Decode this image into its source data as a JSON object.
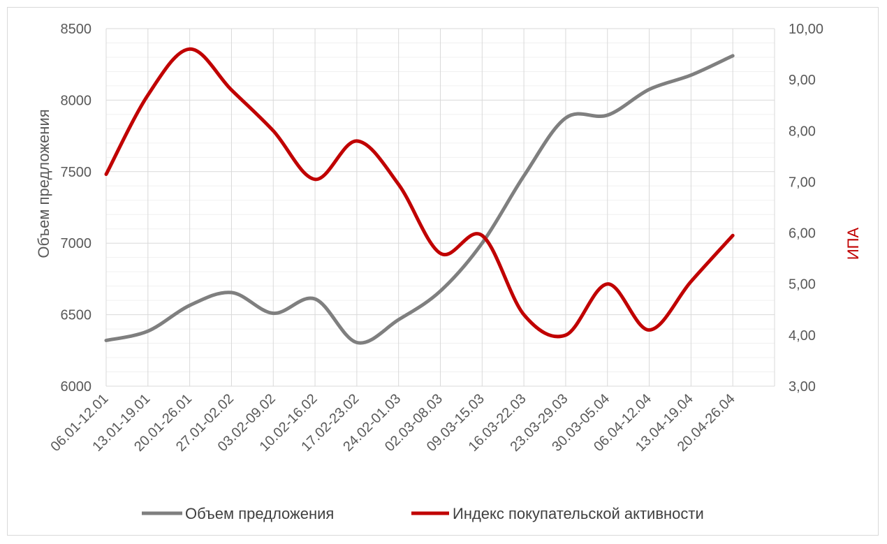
{
  "chart_data": {
    "type": "line",
    "categories": [
      "06.01-12.01",
      "13.01-19.01",
      "20.01-26.01",
      "27.01-02.02",
      "03.02-09.02",
      "10.02-16.02",
      "17.02-23.02",
      "24.02-01.03",
      "02.03-08.03",
      "09.03-15.03",
      "16.03-22.03",
      "23.03-29.03",
      "30.03-05.04",
      "06.04-12.04",
      "13.04-19.04",
      "20.04-26.04"
    ],
    "series": [
      {
        "name": "Объем предложения",
        "axis": "left",
        "color": "#7f7f7f",
        "values": [
          6320,
          6385,
          6565,
          6655,
          6510,
          6610,
          6305,
          6465,
          6665,
          7000,
          7470,
          7875,
          7895,
          8075,
          8175,
          8310
        ]
      },
      {
        "name": "Индекс покупательской активности",
        "axis": "right",
        "color": "#c00000",
        "values": [
          7.15,
          8.7,
          9.6,
          8.8,
          8.0,
          7.05,
          7.8,
          6.95,
          5.6,
          5.95,
          4.4,
          4.0,
          5.0,
          4.1,
          5.05,
          5.95
        ]
      }
    ],
    "y_left": {
      "label": "Объем предложения",
      "min": 6000,
      "max": 8500,
      "ticks": [
        "6000",
        "6500",
        "7000",
        "7500",
        "8000",
        "8500"
      ]
    },
    "y_right": {
      "label": "ИПА",
      "min": 3,
      "max": 10,
      "ticks": [
        "3,00",
        "4,00",
        "5,00",
        "6,00",
        "7,00",
        "8,00",
        "9,00",
        "10,00"
      ]
    },
    "grid": true,
    "legend_position": "bottom"
  }
}
